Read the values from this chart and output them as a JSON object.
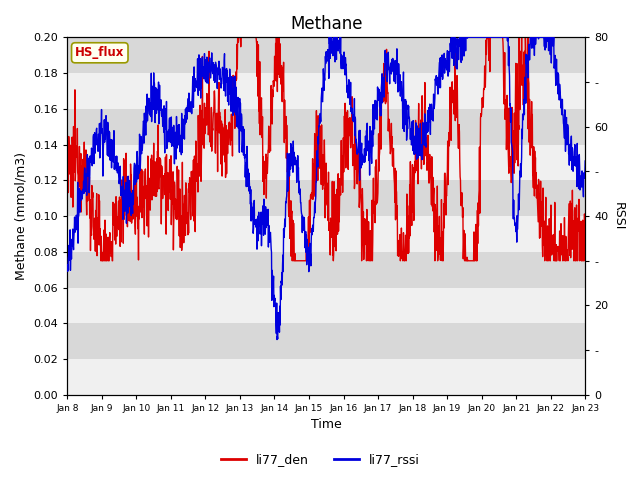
{
  "title": "Methane",
  "ylabel_left": "Methane (mmol/m3)",
  "ylabel_right": "RSSI",
  "xlabel": "Time",
  "ylim_left": [
    0.0,
    0.2
  ],
  "ylim_right": [
    0,
    80
  ],
  "yticks_left": [
    0.0,
    0.02,
    0.04,
    0.06,
    0.08,
    0.1,
    0.12,
    0.14,
    0.16,
    0.18,
    0.2
  ],
  "ytick_labels_left": [
    "0.00",
    "0.02",
    "0.04",
    "0.06",
    "0.08",
    "0.10",
    "0.12",
    "0.14",
    "0.16",
    "0.18",
    "0.20"
  ],
  "yticks_right": [
    0,
    10,
    20,
    30,
    40,
    50,
    60,
    70,
    80
  ],
  "ytick_labels_right": [
    "0",
    "-",
    "20",
    "-",
    "40",
    "-",
    "60",
    "-",
    "80"
  ],
  "xtick_labels": [
    "Jan 8",
    "Jan 9",
    "Jan 10",
    "Jan 11",
    "Jan 12",
    "Jan 13",
    "Jan 14",
    "Jan 15",
    "Jan 16",
    "Jan 17",
    "Jan 18",
    "Jan 19",
    "Jan 20",
    "Jan 21",
    "Jan 22",
    "Jan 23"
  ],
  "xtick_positions": [
    0,
    1,
    2,
    3,
    4,
    5,
    6,
    7,
    8,
    9,
    10,
    11,
    12,
    13,
    14,
    15
  ],
  "color_red": "#dd0000",
  "color_blue": "#0000dd",
  "legend_entries": [
    "li77_den",
    "li77_rssi"
  ],
  "hs_flux_label": "HS_flux",
  "bg_color": "#d8d8d8",
  "white_band_color": "#f0f0f0",
  "linewidth": 1.0,
  "title_fontsize": 12,
  "axis_label_fontsize": 9,
  "tick_fontsize": 8
}
